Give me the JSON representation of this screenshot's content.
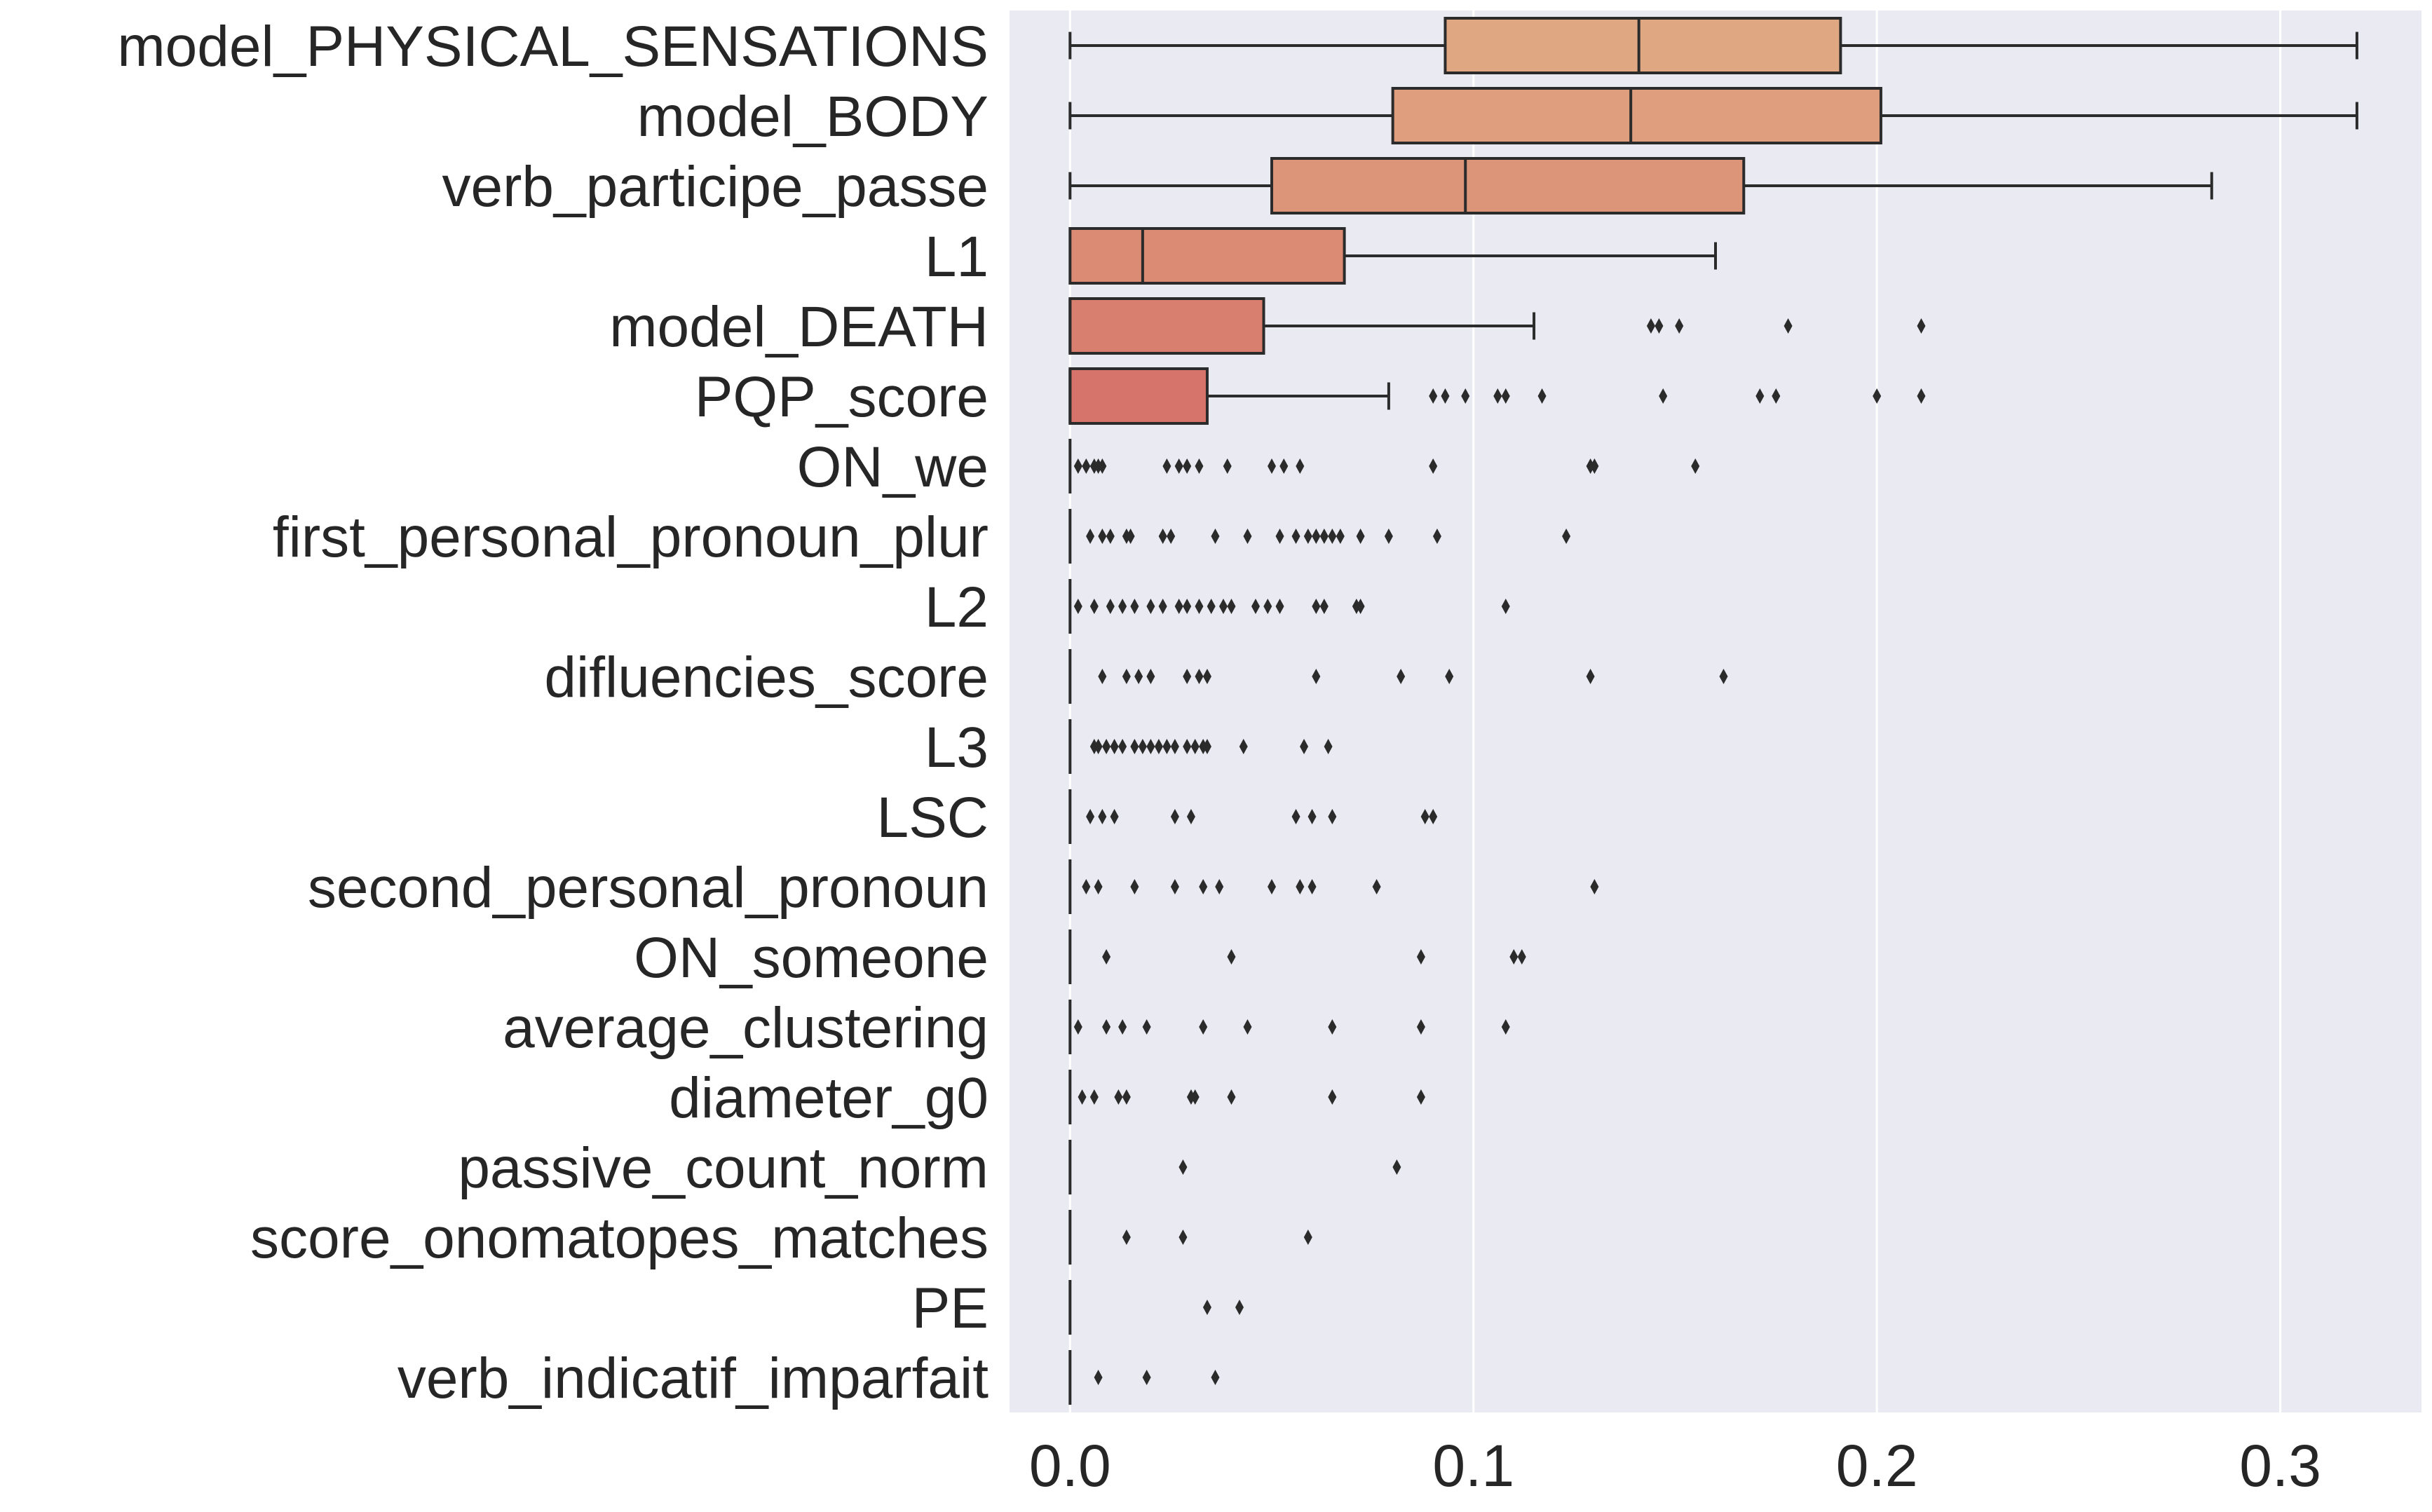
{
  "chart_data": {
    "type": "boxplot",
    "orientation": "horizontal",
    "title": "",
    "xlabel": "",
    "ylabel": "",
    "xlim": [
      -0.015,
      0.335
    ],
    "xticks": [
      0.0,
      0.1,
      0.2,
      0.3
    ],
    "xtick_labels": [
      "0.0",
      "0.1",
      "0.2",
      "0.3"
    ],
    "grid": true,
    "colors": {
      "background": "#eaeaf2",
      "grid": "#ffffff",
      "line": "#2b2b2b"
    },
    "boxes": [
      {
        "label": "model_PHYSICAL_SENSATIONS",
        "whislo": 0.0,
        "q1": 0.093,
        "median": 0.141,
        "q3": 0.191,
        "whishi": 0.319,
        "fliers": [],
        "color": "#e0a882"
      },
      {
        "label": "model_BODY",
        "whislo": 0.0,
        "q1": 0.08,
        "median": 0.139,
        "q3": 0.201,
        "whishi": 0.319,
        "fliers": [],
        "color": "#df9f7f"
      },
      {
        "label": "verb_participe_passe",
        "whislo": 0.0,
        "q1": 0.05,
        "median": 0.098,
        "q3": 0.167,
        "whishi": 0.283,
        "fliers": [],
        "color": "#dd957a"
      },
      {
        "label": "L1",
        "whislo": 0.0,
        "q1": 0.0,
        "median": 0.018,
        "q3": 0.068,
        "whishi": 0.16,
        "fliers": [],
        "color": "#db8b74"
      },
      {
        "label": "model_DEATH",
        "whislo": 0.0,
        "q1": 0.0,
        "median": 0.0,
        "q3": 0.048,
        "whishi": 0.115,
        "fliers": [
          0.144,
          0.146,
          0.151,
          0.178,
          0.211
        ],
        "color": "#d97f70"
      },
      {
        "label": "PQP_score",
        "whislo": 0.0,
        "q1": 0.0,
        "median": 0.0,
        "q3": 0.034,
        "whishi": 0.079,
        "fliers": [
          0.09,
          0.093,
          0.098,
          0.106,
          0.108,
          0.117,
          0.147,
          0.171,
          0.175,
          0.2,
          0.211
        ],
        "color": "#d6736b"
      },
      {
        "label": "ON_we",
        "whislo": 0.0,
        "q1": 0.0,
        "median": 0.0,
        "q3": 0.0,
        "whishi": 0.0,
        "fliers": [
          0.002,
          0.004,
          0.006,
          0.007,
          0.008,
          0.024,
          0.027,
          0.029,
          0.032,
          0.039,
          0.05,
          0.053,
          0.057,
          0.09,
          0.129,
          0.13,
          0.155
        ],
        "color": "#d6736b"
      },
      {
        "label": "first_personal_pronoun_plur",
        "whislo": 0.0,
        "q1": 0.0,
        "median": 0.0,
        "q3": 0.0,
        "whishi": 0.0,
        "fliers": [
          0.005,
          0.008,
          0.01,
          0.014,
          0.015,
          0.023,
          0.025,
          0.036,
          0.044,
          0.052,
          0.056,
          0.059,
          0.061,
          0.063,
          0.065,
          0.067,
          0.072,
          0.079,
          0.091,
          0.123
        ],
        "color": "#d6736b"
      },
      {
        "label": "L2",
        "whislo": 0.0,
        "q1": 0.0,
        "median": 0.0,
        "q3": 0.0,
        "whishi": 0.0,
        "fliers": [
          0.002,
          0.006,
          0.01,
          0.013,
          0.016,
          0.02,
          0.023,
          0.027,
          0.029,
          0.032,
          0.035,
          0.038,
          0.04,
          0.046,
          0.049,
          0.052,
          0.061,
          0.063,
          0.071,
          0.072,
          0.108
        ],
        "color": "#d6736b"
      },
      {
        "label": "difluencies_score",
        "whislo": 0.0,
        "q1": 0.0,
        "median": 0.0,
        "q3": 0.0,
        "whishi": 0.0,
        "fliers": [
          0.008,
          0.014,
          0.017,
          0.02,
          0.029,
          0.032,
          0.034,
          0.061,
          0.082,
          0.094,
          0.129,
          0.162
        ],
        "color": "#d6736b"
      },
      {
        "label": "L3",
        "whislo": 0.0,
        "q1": 0.0,
        "median": 0.0,
        "q3": 0.0,
        "whishi": 0.0,
        "fliers": [
          0.006,
          0.007,
          0.009,
          0.011,
          0.013,
          0.016,
          0.018,
          0.02,
          0.022,
          0.024,
          0.026,
          0.029,
          0.031,
          0.033,
          0.034,
          0.043,
          0.058,
          0.064
        ],
        "color": "#d6736b"
      },
      {
        "label": "LSC",
        "whislo": 0.0,
        "q1": 0.0,
        "median": 0.0,
        "q3": 0.0,
        "whishi": 0.0,
        "fliers": [
          0.005,
          0.008,
          0.011,
          0.026,
          0.03,
          0.056,
          0.06,
          0.065,
          0.088,
          0.09
        ],
        "color": "#d6736b"
      },
      {
        "label": "second_personal_pronoun",
        "whislo": 0.0,
        "q1": 0.0,
        "median": 0.0,
        "q3": 0.0,
        "whishi": 0.0,
        "fliers": [
          0.004,
          0.007,
          0.016,
          0.026,
          0.033,
          0.037,
          0.05,
          0.057,
          0.06,
          0.076,
          0.13
        ],
        "color": "#d6736b"
      },
      {
        "label": "ON_someone",
        "whislo": 0.0,
        "q1": 0.0,
        "median": 0.0,
        "q3": 0.0,
        "whishi": 0.0,
        "fliers": [
          0.009,
          0.04,
          0.087,
          0.11,
          0.112
        ],
        "color": "#d6736b"
      },
      {
        "label": "average_clustering",
        "whislo": 0.0,
        "q1": 0.0,
        "median": 0.0,
        "q3": 0.0,
        "whishi": 0.0,
        "fliers": [
          0.002,
          0.009,
          0.013,
          0.019,
          0.033,
          0.044,
          0.065,
          0.087,
          0.108
        ],
        "color": "#d6736b"
      },
      {
        "label": "diameter_g0",
        "whislo": 0.0,
        "q1": 0.0,
        "median": 0.0,
        "q3": 0.0,
        "whishi": 0.0,
        "fliers": [
          0.003,
          0.006,
          0.012,
          0.014,
          0.03,
          0.031,
          0.04,
          0.065,
          0.087
        ],
        "color": "#d6736b"
      },
      {
        "label": "passive_count_norm",
        "whislo": 0.0,
        "q1": 0.0,
        "median": 0.0,
        "q3": 0.0,
        "whishi": 0.0,
        "fliers": [
          0.028,
          0.081
        ],
        "color": "#d6736b"
      },
      {
        "label": "score_onomatopes_matches",
        "whislo": 0.0,
        "q1": 0.0,
        "median": 0.0,
        "q3": 0.0,
        "whishi": 0.0,
        "fliers": [
          0.014,
          0.028,
          0.059
        ],
        "color": "#d6736b"
      },
      {
        "label": "PE",
        "whislo": 0.0,
        "q1": 0.0,
        "median": 0.0,
        "q3": 0.0,
        "whishi": 0.0,
        "fliers": [
          0.034,
          0.042
        ],
        "color": "#d6736b"
      },
      {
        "label": "verb_indicatif_imparfait",
        "whislo": 0.0,
        "q1": 0.0,
        "median": 0.0,
        "q3": 0.0,
        "whishi": 0.0,
        "fliers": [
          0.007,
          0.019,
          0.036
        ],
        "color": "#d6736b"
      }
    ]
  }
}
